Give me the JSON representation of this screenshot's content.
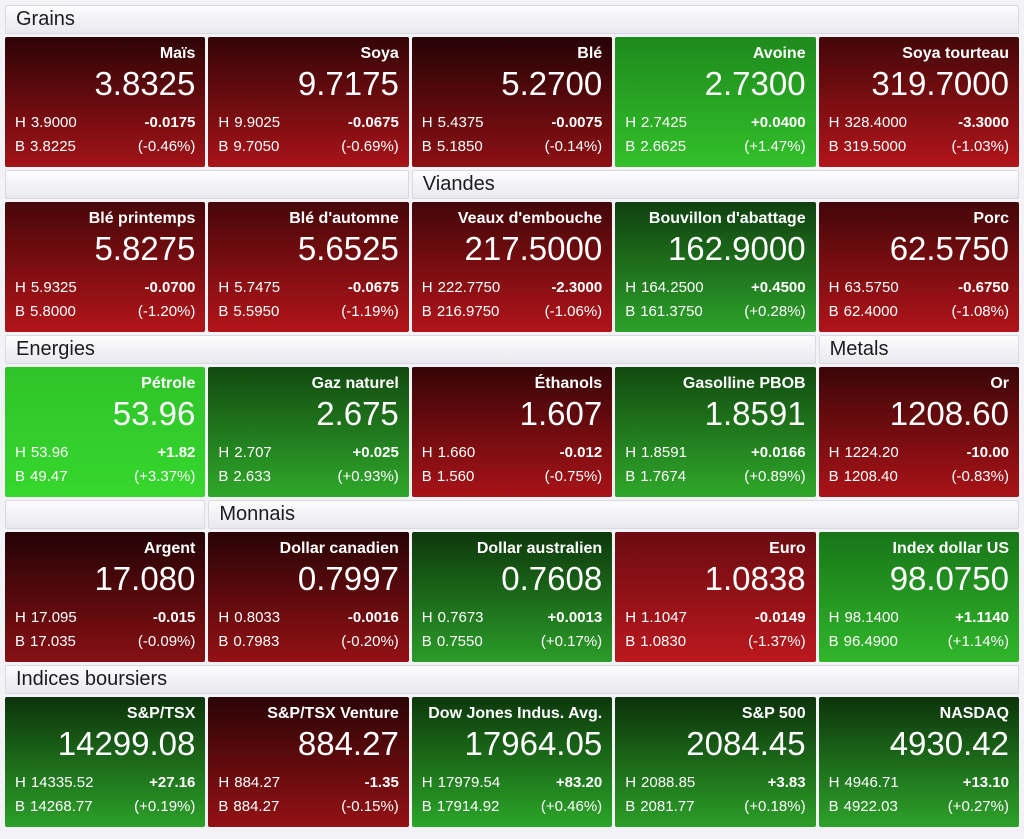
{
  "page": {
    "background": "#f2f2f7",
    "header_bg_top": "#fdfdfe",
    "header_bg_bottom": "#e8e8ef",
    "positive_color": "#2da22a",
    "negative_color": "#a81318"
  },
  "labels": {
    "high_prefix": "H",
    "low_prefix": "B"
  },
  "sections": [
    {
      "headers": [
        {
          "label": "Grains",
          "span": 5
        }
      ],
      "tiles": [
        {
          "name": "Maïs",
          "last": "3.8325",
          "high": "3.9000",
          "low": "3.8225",
          "change": "-0.0175",
          "change_pct": "(-0.46%)",
          "direction": "down",
          "grad_top": "#2e0406",
          "grad_bottom": "#a21318"
        },
        {
          "name": "Soya",
          "last": "9.7175",
          "high": "9.9025",
          "low": "9.7050",
          "change": "-0.0675",
          "change_pct": "(-0.69%)",
          "direction": "down",
          "grad_top": "#330507",
          "grad_bottom": "#a81318"
        },
        {
          "name": "Blé",
          "last": "5.2700",
          "high": "5.4375",
          "low": "5.1850",
          "change": "-0.0075",
          "change_pct": "(-0.14%)",
          "direction": "down",
          "grad_top": "#260305",
          "grad_bottom": "#8c1014"
        },
        {
          "name": "Avoine",
          "last": "2.7300",
          "high": "2.7425",
          "low": "2.6625",
          "change": "+0.0400",
          "change_pct": "(+1.47%)",
          "direction": "up",
          "grad_top": "#1e8a1d",
          "grad_bottom": "#33c02a"
        },
        {
          "name": "Soya tourteau",
          "last": "319.7000",
          "high": "328.4000",
          "low": "319.5000",
          "change": "-3.3000",
          "change_pct": "(-1.03%)",
          "direction": "down",
          "grad_top": "#430709",
          "grad_bottom": "#b2151a"
        }
      ]
    },
    {
      "headers": [
        {
          "label": "",
          "span": 2
        },
        {
          "label": "Viandes",
          "span": 3
        }
      ],
      "tiles": [
        {
          "name": "Blé printemps",
          "last": "5.8275",
          "high": "5.9325",
          "low": "5.8000",
          "change": "-0.0700",
          "change_pct": "(-1.20%)",
          "direction": "down",
          "grad_top": "#470709",
          "grad_bottom": "#b2151a"
        },
        {
          "name": "Blé d'automne",
          "last": "5.6525",
          "high": "5.7475",
          "low": "5.5950",
          "change": "-0.0675",
          "change_pct": "(-1.19%)",
          "direction": "down",
          "grad_top": "#470709",
          "grad_bottom": "#b2151a"
        },
        {
          "name": "Veaux d'embouche",
          "last": "217.5000",
          "high": "222.7750",
          "low": "216.9750",
          "change": "-2.3000",
          "change_pct": "(-1.06%)",
          "direction": "down",
          "grad_top": "#430709",
          "grad_bottom": "#b0141a"
        },
        {
          "name": "Bouvillon d'abattage",
          "last": "162.9000",
          "high": "164.2500",
          "low": "161.3750",
          "change": "+0.4500",
          "change_pct": "(+0.28%)",
          "direction": "up",
          "grad_top": "#10400f",
          "grad_bottom": "#2da22a"
        },
        {
          "name": "Porc",
          "last": "62.5750",
          "high": "63.5750",
          "low": "62.4000",
          "change": "-0.6750",
          "change_pct": "(-1.08%)",
          "direction": "down",
          "grad_top": "#430709",
          "grad_bottom": "#b0141a"
        }
      ]
    },
    {
      "headers": [
        {
          "label": "Energies",
          "span": 4
        },
        {
          "label": "Metals",
          "span": 1
        }
      ],
      "tiles": [
        {
          "name": "Pétrole",
          "last": "53.96",
          "high": "53.96",
          "low": "49.47",
          "change": "+1.82",
          "change_pct": "(+3.37%)",
          "direction": "up",
          "grad_top": "#2fc32a",
          "grad_bottom": "#36d72d"
        },
        {
          "name": "Gaz naturel",
          "last": "2.675",
          "high": "2.707",
          "low": "2.633",
          "change": "+0.025",
          "change_pct": "(+0.93%)",
          "direction": "up",
          "grad_top": "#124a10",
          "grad_bottom": "#2fa82a"
        },
        {
          "name": "Éthanols",
          "last": "1.607",
          "high": "1.660",
          "low": "1.560",
          "change": "-0.012",
          "change_pct": "(-0.75%)",
          "direction": "down",
          "grad_top": "#370507",
          "grad_bottom": "#a81318"
        },
        {
          "name": "Gasolline PBOB",
          "last": "1.8591",
          "high": "1.8591",
          "low": "1.7674",
          "change": "+0.0166",
          "change_pct": "(+0.89%)",
          "direction": "up",
          "grad_top": "#124a10",
          "grad_bottom": "#2fa82a"
        },
        {
          "name": "Or",
          "last": "1208.60",
          "high": "1224.20",
          "low": "1208.40",
          "change": "-10.00",
          "change_pct": "(-0.83%)",
          "direction": "down",
          "grad_top": "#3b0608",
          "grad_bottom": "#aa1318"
        }
      ]
    },
    {
      "headers": [
        {
          "label": "",
          "span": 1
        },
        {
          "label": "Monnais",
          "span": 4
        }
      ],
      "tiles": [
        {
          "name": "Argent",
          "last": "17.080",
          "high": "17.095",
          "low": "17.035",
          "change": "-0.015",
          "change_pct": "(-0.09%)",
          "direction": "down",
          "grad_top": "#240305",
          "grad_bottom": "#871014"
        },
        {
          "name": "Dollar canadien",
          "last": "0.7997",
          "high": "0.8033",
          "low": "0.7983",
          "change": "-0.0016",
          "change_pct": "(-0.20%)",
          "direction": "down",
          "grad_top": "#290406",
          "grad_bottom": "#941115"
        },
        {
          "name": "Dollar australien",
          "last": "0.7608",
          "high": "0.7673",
          "low": "0.7550",
          "change": "+0.0013",
          "change_pct": "(+0.17%)",
          "direction": "up",
          "grad_top": "#0d380c",
          "grad_bottom": "#2b9c28"
        },
        {
          "name": "Euro",
          "last": "1.0838",
          "high": "1.1047",
          "low": "1.0830",
          "change": "-0.0149",
          "change_pct": "(-1.37%)",
          "direction": "down",
          "grad_top": "#6b0c11",
          "grad_bottom": "#bb181e"
        },
        {
          "name": "Index dollar US",
          "last": "98.0750",
          "high": "98.1400",
          "low": "96.4900",
          "change": "+1.1140",
          "change_pct": "(+1.14%)",
          "direction": "up",
          "grad_top": "#187618",
          "grad_bottom": "#31b62b"
        }
      ]
    },
    {
      "headers": [
        {
          "label": "Indices boursiers",
          "span": 5
        }
      ],
      "tiles": [
        {
          "name": "S&P/TSX",
          "last": "14299.08",
          "high": "14335.52",
          "low": "14268.77",
          "change": "+27.16",
          "change_pct": "(+0.19%)",
          "direction": "up",
          "grad_top": "#0d340c",
          "grad_bottom": "#2ca029"
        },
        {
          "name": "S&P/TSX Venture",
          "last": "884.27",
          "high": "884.27",
          "low": "884.27",
          "change": "-1.35",
          "change_pct": "(-0.15%)",
          "direction": "down",
          "grad_top": "#2b0405",
          "grad_bottom": "#941115"
        },
        {
          "name": "Dow Jones Indus. Avg.",
          "last": "17964.05",
          "high": "17979.54",
          "low": "17914.92",
          "change": "+83.20",
          "change_pct": "(+0.46%)",
          "direction": "up",
          "grad_top": "#0d380c",
          "grad_bottom": "#2ba528"
        },
        {
          "name": "S&P 500",
          "last": "2084.45",
          "high": "2088.85",
          "low": "2081.77",
          "change": "+3.83",
          "change_pct": "(+0.18%)",
          "direction": "up",
          "grad_top": "#0c320b",
          "grad_bottom": "#2c9e28"
        },
        {
          "name": "NASDAQ",
          "last": "4930.42",
          "high": "4946.71",
          "low": "4922.03",
          "change": "+13.10",
          "change_pct": "(+0.27%)",
          "direction": "up",
          "grad_top": "#0d340c",
          "grad_bottom": "#2da22a"
        }
      ]
    }
  ]
}
